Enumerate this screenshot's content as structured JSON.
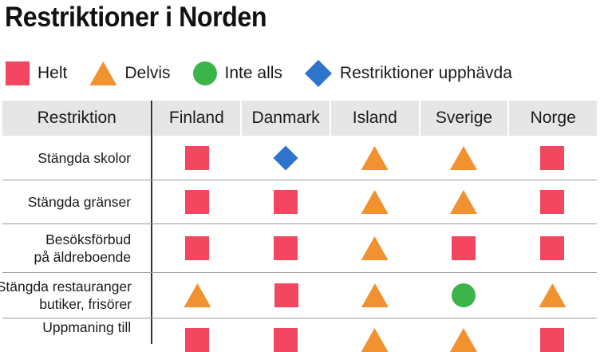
{
  "title": "Restriktioner i Norden",
  "legend": [
    {
      "shape": "square",
      "color": "#f2475f",
      "label": "Helt"
    },
    {
      "shape": "triangle",
      "color": "#f29130",
      "label": "Delvis"
    },
    {
      "shape": "circle",
      "color": "#3bb54a",
      "label": "Inte alls"
    },
    {
      "shape": "diamond",
      "color": "#2e73cc",
      "label": "Restriktioner upphävda"
    }
  ],
  "header": {
    "first": "Restriktion",
    "countries": [
      "Finland",
      "Danmark",
      "Island",
      "Sverige",
      "Norge"
    ]
  },
  "rows": [
    {
      "lines": [
        "Stängda skolor"
      ],
      "cells": [
        "square",
        "diamond",
        "triangle",
        "triangle",
        "square"
      ]
    },
    {
      "lines": [
        "Stängda gränser"
      ],
      "cells": [
        "square",
        "square",
        "triangle",
        "triangle",
        "square"
      ]
    },
    {
      "lines": [
        "Besöksförbud",
        "på äldreboende"
      ],
      "cells": [
        "square",
        "square",
        "triangle",
        "square",
        "square"
      ]
    },
    {
      "lines": [
        "Stängda restauranger",
        "butiker, frisörer"
      ],
      "cells": [
        "triangle",
        "square",
        "triangle",
        "circle",
        "triangle"
      ]
    },
    {
      "lines": [
        "Uppmaning till"
      ],
      "cells": [
        "square",
        "square",
        "triangle",
        "triangle",
        "square"
      ]
    }
  ]
}
